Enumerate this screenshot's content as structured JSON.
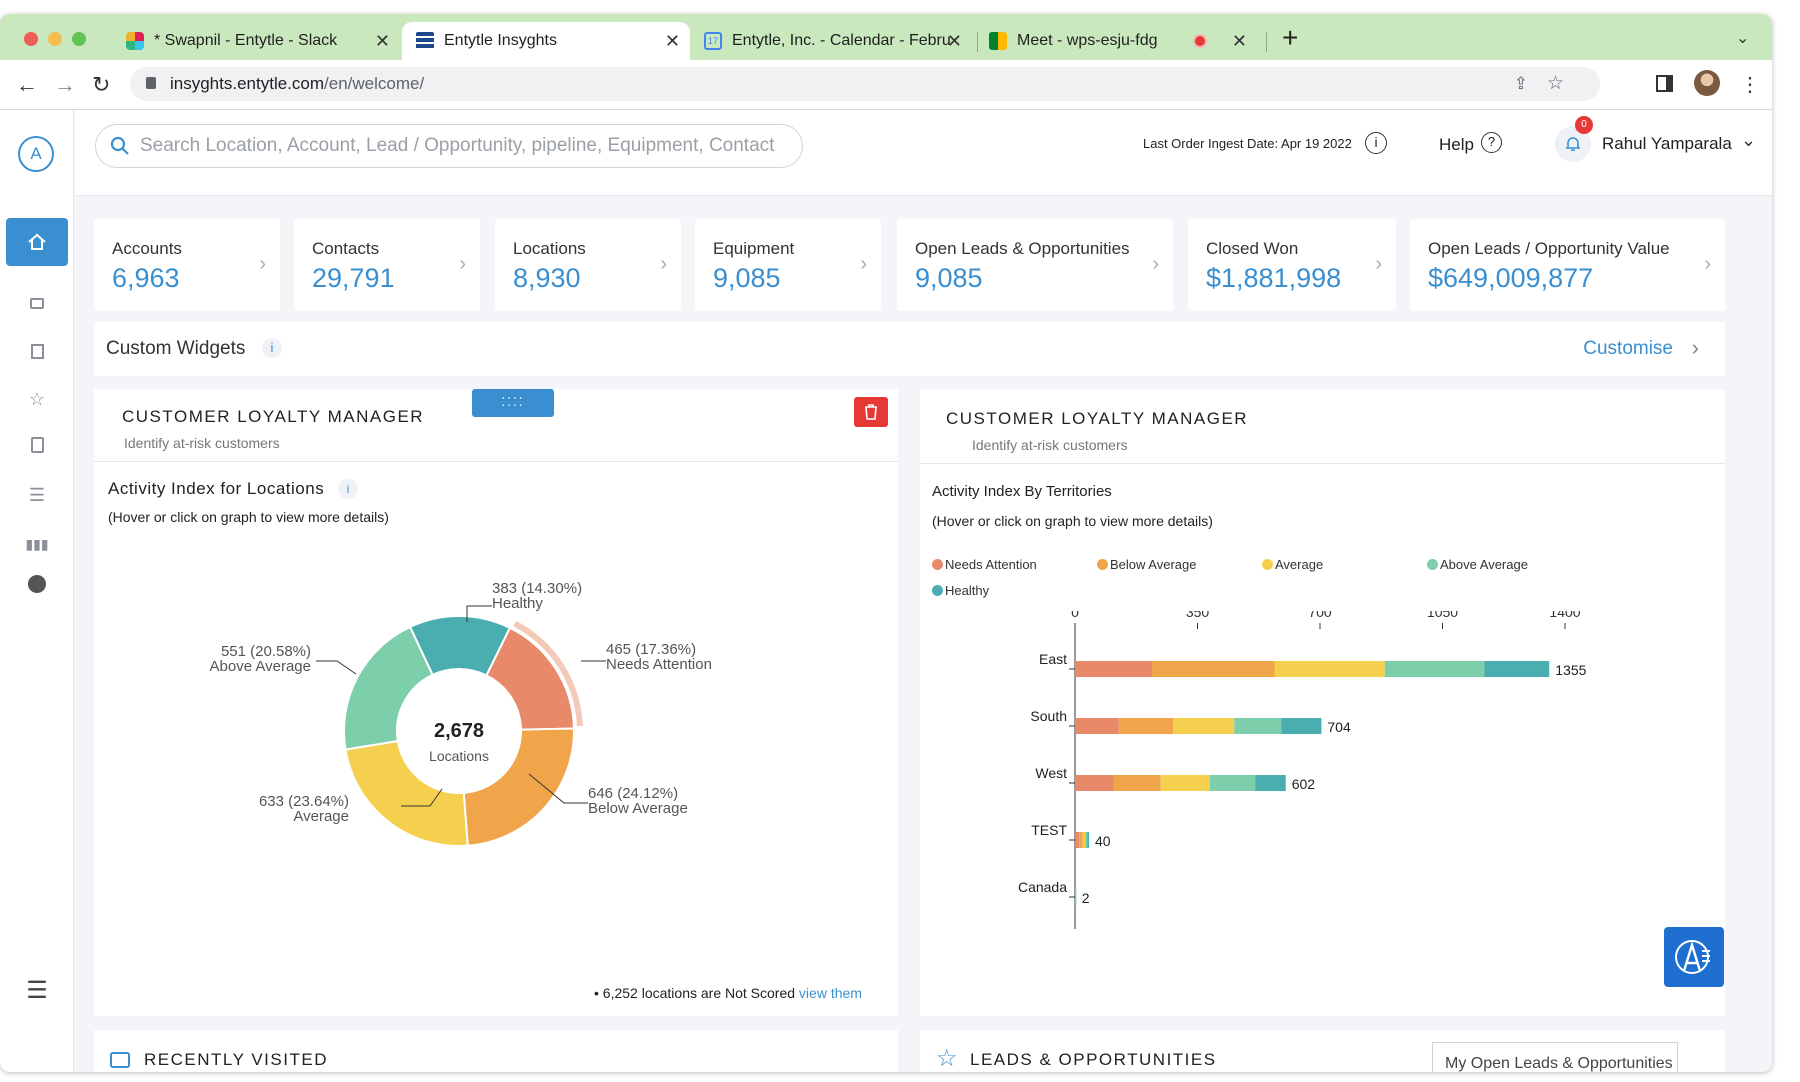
{
  "browser": {
    "tabs": [
      {
        "label": "* Swapnil - Entytle - Slack",
        "icon": "slack-icon"
      },
      {
        "label": "Entytle Insyghts",
        "icon": "entytle-icon"
      },
      {
        "label": "Entytle, Inc. - Calendar - Febru",
        "icon": "calendar-icon"
      },
      {
        "label": "Meet - wps-esju-fdg",
        "icon": "meet-icon"
      }
    ],
    "url_domain": "insyghts.entytle.com",
    "url_path": "/en/welcome/"
  },
  "header": {
    "search_placeholder": "Search Location, Account, Lead / Opportunity, pipeline, Equipment, Contact",
    "ingest_label": "Last Order Ingest Date: Apr 19 2022",
    "help_label": "Help",
    "notif_count": "0",
    "user_name": "Rahul Yamparala",
    "logo_letter": "A"
  },
  "stats": [
    {
      "label": "Accounts",
      "value": "6,963"
    },
    {
      "label": "Contacts",
      "value": "29,791"
    },
    {
      "label": "Locations",
      "value": "8,930"
    },
    {
      "label": "Equipment",
      "value": "9,085"
    },
    {
      "label": "Open Leads & Opportunities",
      "value": "9,085"
    },
    {
      "label": "Closed Won",
      "value": "$1,881,998"
    },
    {
      "label": "Open Leads / Opportunity Value",
      "value": "$649,009,877"
    }
  ],
  "widgets": {
    "title": "Custom Widgets",
    "info": "i",
    "customise": "Customise"
  },
  "left_panel": {
    "title": "CUSTOMER LOYALTY MANAGER",
    "subtitle": "Identify at-risk customers",
    "chart_title": "Activity Index for Locations",
    "info": "i",
    "hint": "(Hover or click on graph to view more details)",
    "center_value": "2,678",
    "center_label": "Locations",
    "footer_text": "6,252 locations are Not Scored",
    "footer_link": "view them"
  },
  "right_panel": {
    "title": "CUSTOMER LOYALTY MANAGER",
    "subtitle": "Identify at-risk customers",
    "chart_title": "Activity Index By Territories",
    "hint": "(Hover or click on graph to view more details)"
  },
  "bottom": {
    "recent": "RECENTLY VISITED",
    "leads": "LEADS & OPPORTUNITIES",
    "leads_select": "My Open Leads & Opportunities"
  },
  "colors": {
    "needs_attention": "#e8896a",
    "below_average": "#f0a54a",
    "average": "#f5d04e",
    "above_average": "#7dcfab",
    "healthy": "#4aaeb0",
    "accent": "#3a8fd0"
  },
  "chart_data": [
    {
      "type": "pie",
      "title": "Activity Index for Locations",
      "slices": [
        {
          "label": "Healthy",
          "value": 383,
          "pct": "14.30%",
          "text": "383 (14.30%)"
        },
        {
          "label": "Needs Attention",
          "value": 465,
          "pct": "17.36%",
          "text": "465 (17.36%)"
        },
        {
          "label": "Below Average",
          "value": 646,
          "pct": "24.12%",
          "text": "646 (24.12%)"
        },
        {
          "label": "Average",
          "value": 633,
          "pct": "23.64%",
          "text": "633 (23.64%)"
        },
        {
          "label": "Above Average",
          "value": 551,
          "pct": "20.58%",
          "text": "551 (20.58%)"
        }
      ]
    },
    {
      "type": "bar",
      "title": "Activity Index By Territories",
      "orientation": "horizontal",
      "stacked": true,
      "categories": [
        "East",
        "South",
        "West",
        "TEST",
        "Canada"
      ],
      "totals": [
        1355,
        704,
        602,
        40,
        2
      ],
      "series": [
        {
          "name": "Needs Attention",
          "values": [
            220,
            125,
            110,
            12,
            0
          ]
        },
        {
          "name": "Below Average",
          "values": [
            350,
            155,
            135,
            10,
            1
          ]
        },
        {
          "name": "Average",
          "values": [
            315,
            175,
            140,
            8,
            0
          ]
        },
        {
          "name": "Above Average",
          "values": [
            285,
            135,
            130,
            5,
            1
          ]
        },
        {
          "name": "Healthy",
          "values": [
            185,
            114,
            87,
            5,
            0
          ]
        }
      ],
      "xticks": [
        0,
        350,
        700,
        1050,
        1400
      ],
      "xlim": [
        0,
        1400
      ],
      "legend": "top"
    }
  ]
}
